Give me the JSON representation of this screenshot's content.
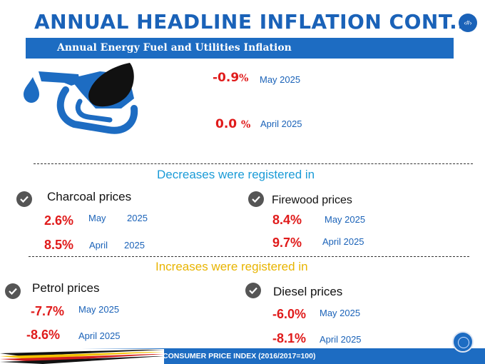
{
  "header": {
    "title": "ANNUAL HEADLINE INFLATION CONT..",
    "page_number": "‹#›",
    "subtitle": "Annual Energy Fuel and Utilities Inflation"
  },
  "energy_fuel_utilities": {
    "current": {
      "value": "-0.9",
      "unit": "%",
      "period": "May  2025"
    },
    "previous": {
      "value": "0.0 ",
      "unit": "%",
      "period": "April 2025"
    }
  },
  "decreases": {
    "heading": "Decreases were registered in",
    "items": [
      {
        "label": "Charcoal  prices",
        "current": {
          "value": "2.6%",
          "month": "May",
          "year": "2025"
        },
        "previous": {
          "value": "8.5%",
          "month": "April",
          "year": "2025"
        }
      },
      {
        "label": "Firewood prices",
        "current": {
          "value": "8.4%",
          "period": "May  2025"
        },
        "previous": {
          "value": "9.7%",
          "period": "April 2025"
        }
      }
    ]
  },
  "increases": {
    "heading": "Increases were registered in",
    "items": [
      {
        "label": "Petrol prices",
        "current": {
          "value": "-7.7%",
          "period": "May 2025"
        },
        "previous": {
          "value": "-8.6%",
          "period": "April 2025"
        }
      },
      {
        "label": "Diesel prices",
        "current": {
          "value": "-6.0%",
          "period": "May 2025"
        },
        "previous": {
          "value": "-8.1%",
          "period": "April 2025"
        }
      }
    ]
  },
  "footer": {
    "text": "CONSUMER PRICE INDEX (2016/2017=100)"
  },
  "colors": {
    "brand_blue": "#1a62b8",
    "negative_red": "#e01b1b",
    "decrease_heading": "#1a9bd7",
    "increase_heading": "#e8b400"
  },
  "icons": [
    "fuel-pump-icon",
    "check-icon",
    "logo-seal-icon",
    "flag-stripes"
  ]
}
